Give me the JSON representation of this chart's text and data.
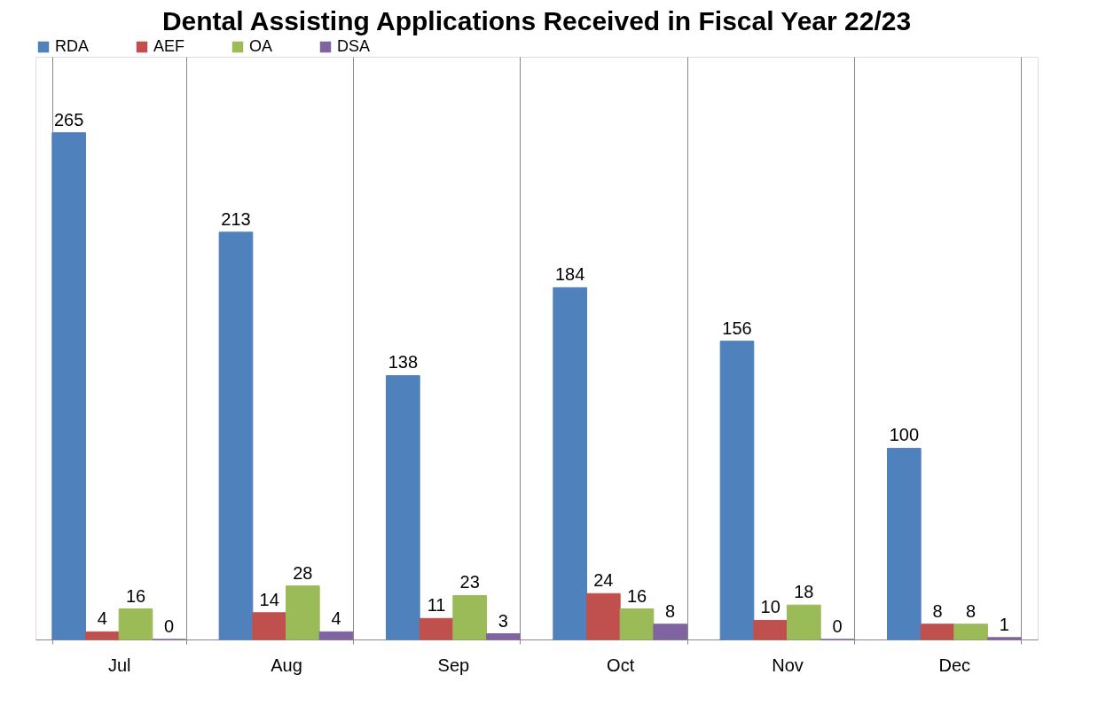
{
  "chart_data": {
    "type": "bar",
    "title": "Dental Assisting Applications Received in Fiscal Year 22/23",
    "categories": [
      "Jul",
      "Aug",
      "Sep",
      "Oct",
      "Nov",
      "Dec"
    ],
    "series": [
      {
        "name": "RDA",
        "color": "#4f81bd",
        "values": [
          265,
          213,
          138,
          184,
          156,
          100
        ]
      },
      {
        "name": "AEF",
        "color": "#c0504d",
        "values": [
          4,
          14,
          11,
          24,
          10,
          8
        ]
      },
      {
        "name": "OA",
        "color": "#9bbb59",
        "values": [
          16,
          28,
          23,
          16,
          18,
          8
        ]
      },
      {
        "name": "DSA",
        "color": "#8064a2",
        "values": [
          0,
          4,
          3,
          8,
          0,
          1
        ]
      }
    ],
    "data_labels": true,
    "grid": "x",
    "legend": "top"
  }
}
